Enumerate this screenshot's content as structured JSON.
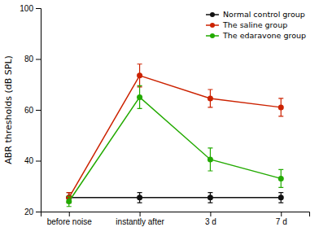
{
  "chart_data": {
    "type": "line",
    "categories": [
      "before noise",
      "instantly after",
      "3 d",
      "7 d"
    ],
    "series": [
      {
        "name": "Normal control group",
        "color": "#111111",
        "values": [
          25.5,
          25.5,
          25.5,
          25.5
        ],
        "yerr": [
          2.0,
          2.0,
          2.0,
          2.0
        ]
      },
      {
        "name": "The saline group",
        "color": "#cc2200",
        "values": [
          25.5,
          73.5,
          64.5,
          61.0
        ],
        "yerr": [
          2.0,
          4.5,
          3.5,
          3.5
        ]
      },
      {
        "name": "The edaravone group",
        "color": "#22aa00",
        "values": [
          24.0,
          65.0,
          40.5,
          33.0
        ],
        "yerr": [
          2.0,
          4.5,
          4.5,
          3.5
        ]
      }
    ],
    "ylabel": "ABR thresholds (dB SPL)",
    "ylim": [
      20,
      100
    ],
    "yticks": [
      20,
      40,
      60,
      80,
      100
    ],
    "grid": false,
    "legend": "upper right",
    "marker": "circle"
  }
}
